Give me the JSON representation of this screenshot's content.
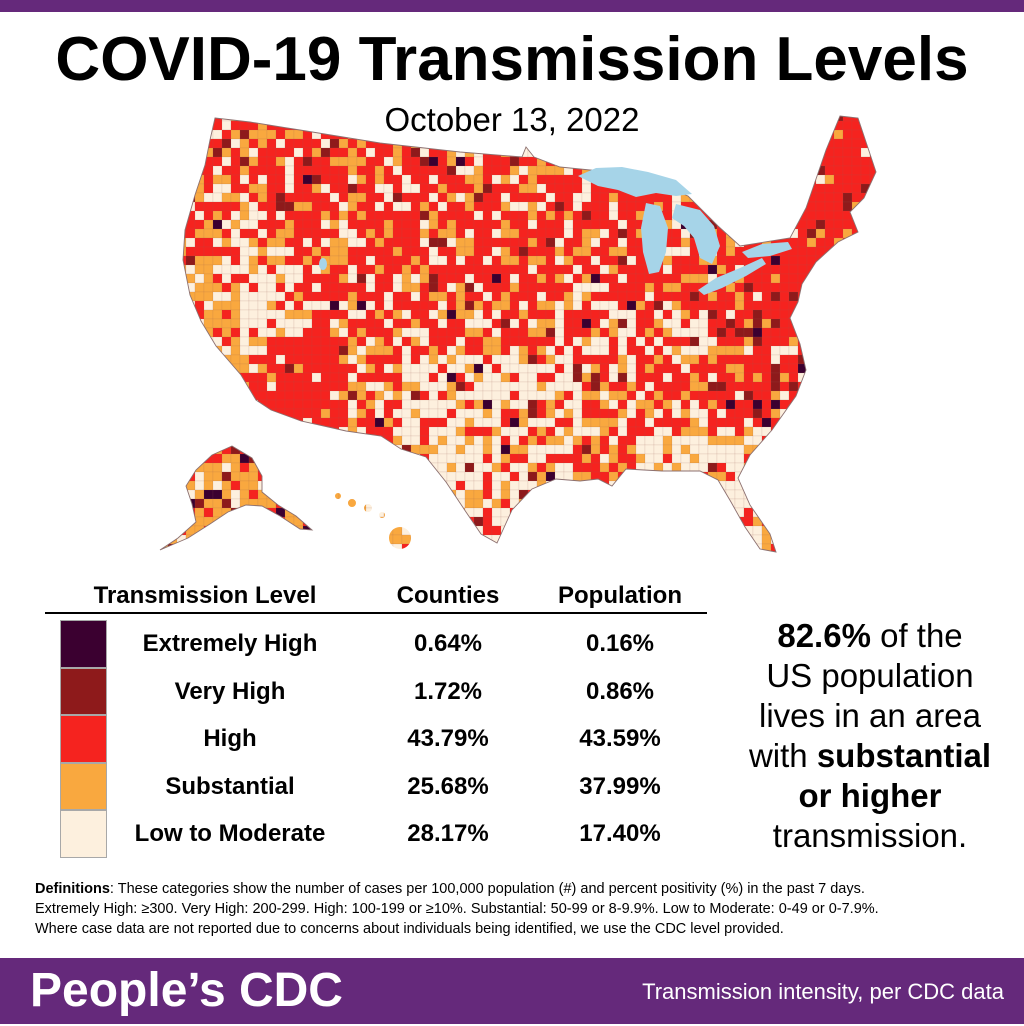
{
  "header": {
    "title": "COVID-19 Transmission Levels",
    "date": "October 13, 2022"
  },
  "table": {
    "col_level": "Transmission Level",
    "col_counties": "Counties",
    "col_population": "Population",
    "rows": [
      {
        "level": "Extremely High",
        "counties": "0.64%",
        "population": "0.16%",
        "color": "#3b0030"
      },
      {
        "level": "Very High",
        "counties": "1.72%",
        "population": "0.86%",
        "color": "#8e1a1b"
      },
      {
        "level": "High",
        "counties": "43.79%",
        "population": "43.59%",
        "color": "#f5231f"
      },
      {
        "level": "Substantial",
        "counties": "25.68%",
        "population": "37.99%",
        "color": "#f9a83f"
      },
      {
        "level": "Low to Moderate",
        "counties": "28.17%",
        "population": "17.40%",
        "color": "#fdf0de"
      }
    ]
  },
  "callout": {
    "percent": "82.6%",
    "line1_rest": " of the",
    "line2": "US population",
    "line3": "lives in an area",
    "line4_pre": "with ",
    "line4_bold": "substantial",
    "line5_bold": "or higher",
    "line6": "transmission."
  },
  "definitions": {
    "label": "Definitions",
    "line1": ": These categories show the number of cases per 100,000 population (#) and percent positivity (%) in the past 7 days.",
    "line2": "Extremely High: ≥300. Very High: 200-299. High: 100-199 or ≥10%. Substantial: 50-99 or 8-9.9%. Low to Moderate: 0-49 or 0-7.9%.",
    "line3": "Where case data are not reported due to concerns about individuals being identified, we use the CDC level provided."
  },
  "footer": {
    "brand": "People’s CDC",
    "tagline": "Transmission intensity, per CDC data"
  },
  "colors": {
    "brand_purple": "#65297b",
    "water": "#a6d4e8",
    "county_border": "#9a5a50",
    "outline": "#8c7070"
  }
}
